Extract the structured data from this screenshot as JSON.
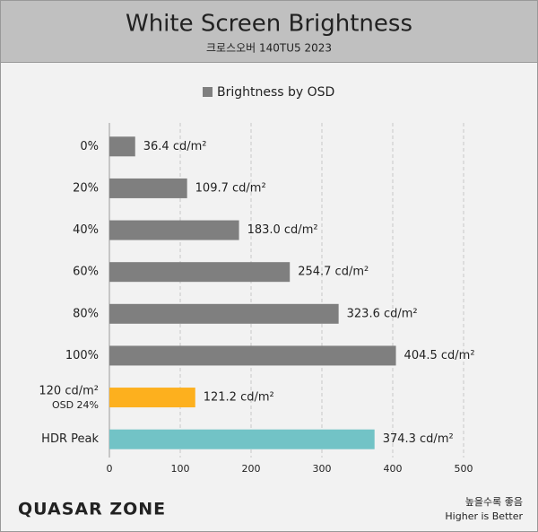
{
  "chart_data": {
    "type": "barh",
    "title": "White Screen Brightness",
    "subtitle": "크로스오버 140TU5 2023",
    "legend": "Brightness by OSD",
    "legend_color": "#7f7f7f",
    "categories": [
      "0%",
      "20%",
      "40%",
      "60%",
      "80%",
      "100%",
      "120 cd/m²",
      "HDR Peak"
    ],
    "category_sublabels": [
      null,
      null,
      null,
      null,
      null,
      null,
      "OSD 24%",
      null
    ],
    "values": [
      36.4,
      109.7,
      183.0,
      254.7,
      323.6,
      404.5,
      121.2,
      374.3
    ],
    "value_labels": [
      "36.4 cd/m²",
      "109.7 cd/m²",
      "183.0 cd/m²",
      "254.7 cd/m²",
      "323.6 cd/m²",
      "404.5 cd/m²",
      "121.2 cd/m²",
      "374.3 cd/m²"
    ],
    "colors": [
      "#7f7f7f",
      "#7f7f7f",
      "#7f7f7f",
      "#7f7f7f",
      "#7f7f7f",
      "#7f7f7f",
      "#fdb01e",
      "#72c3c6"
    ],
    "xlim": [
      0,
      500
    ],
    "xticks": [
      0,
      100,
      200,
      300,
      400,
      500
    ],
    "grid": true,
    "logo": "QUASAR ZONE",
    "note": [
      "높을수록 좋음",
      "Higher is Better"
    ]
  }
}
